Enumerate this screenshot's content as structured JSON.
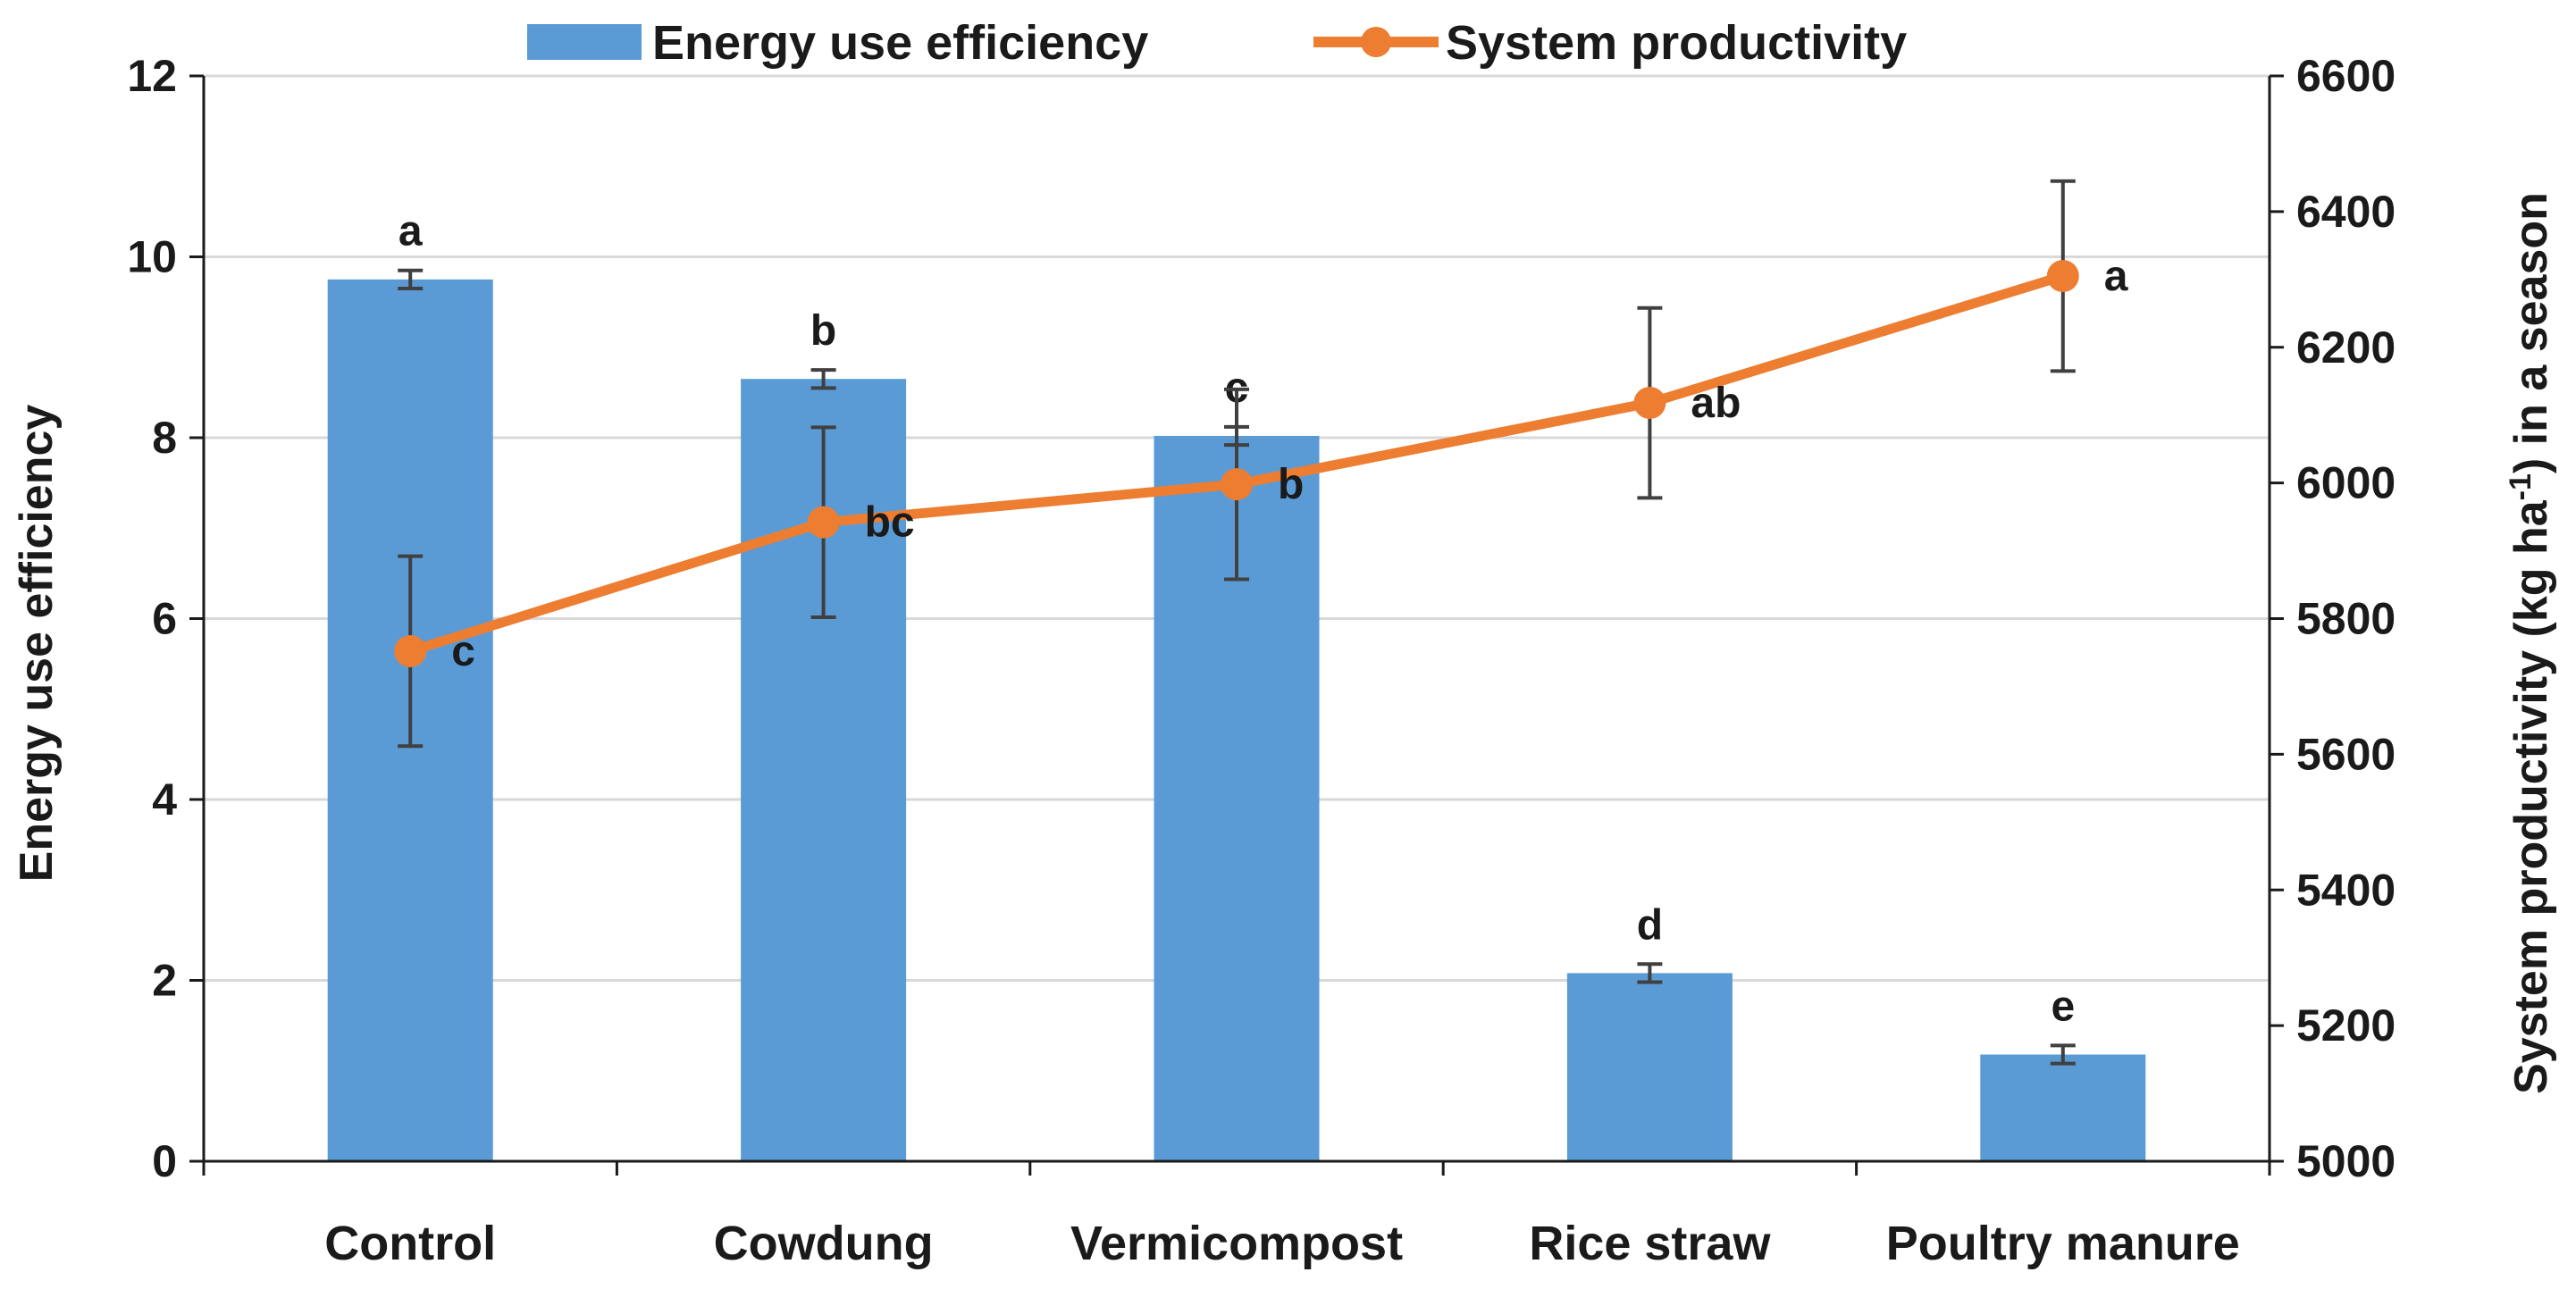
{
  "chart_data": {
    "type": "bar",
    "categories": [
      "Control",
      "Cowdung",
      "Vermicompost",
      "Rice straw",
      "Poultry manure"
    ],
    "series": [
      {
        "name": "Energy use efficiency",
        "type": "bar",
        "axis": "left",
        "color": "#5b9bd5",
        "values": [
          9.75,
          8.65,
          8.02,
          2.08,
          1.18
        ],
        "errors": [
          0.1,
          0.1,
          0.1,
          0.1,
          0.1
        ],
        "labels": [
          "a",
          "b",
          "c",
          "d",
          "e"
        ]
      },
      {
        "name": "System productivity",
        "type": "line",
        "axis": "right",
        "color": "#ed7d31",
        "values": [
          5752,
          5942,
          5998,
          6118,
          6305
        ],
        "errors": [
          140,
          140,
          140,
          140,
          140
        ],
        "labels": [
          "c",
          "bc",
          "b",
          "ab",
          "a"
        ]
      }
    ],
    "y_left": {
      "label": "Energy use efficiency",
      "lim": [
        0,
        12
      ],
      "ticks": [
        "0",
        "2",
        "4",
        "6",
        "8",
        "10",
        "12"
      ]
    },
    "y_right": {
      "label_main": "System productivity (kg ha",
      "label_sup": "-1",
      "label_end": ") in a season",
      "lim": [
        5000,
        6600
      ],
      "ticks": [
        "5000",
        "5200",
        "5400",
        "5600",
        "5800",
        "6000",
        "6200",
        "6400",
        "6600"
      ]
    },
    "grid": true,
    "legend_position": "top"
  }
}
